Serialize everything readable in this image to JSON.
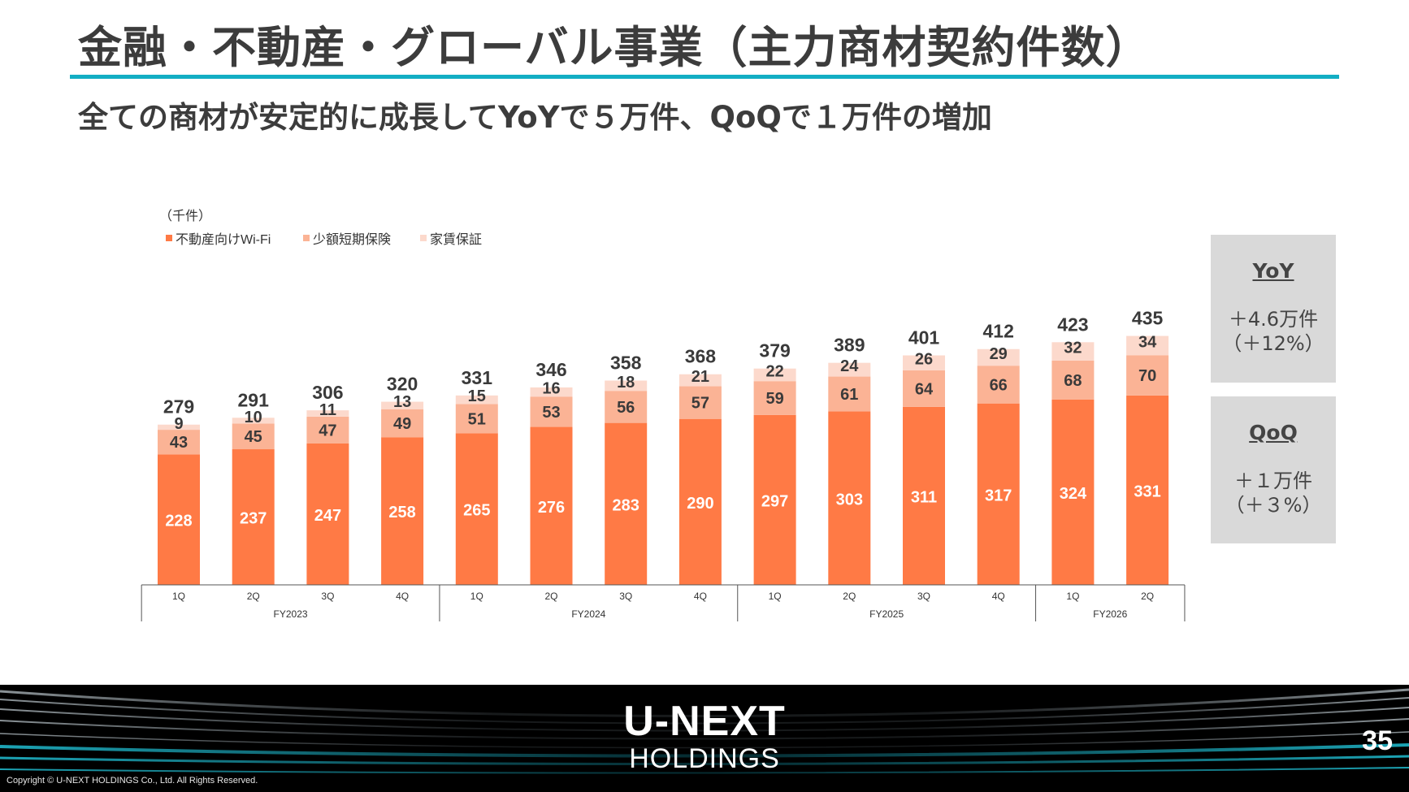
{
  "title": "金融・不動産・グローバル事業（主力商材契約件数）",
  "subtitle": "全ての商材が安定的に成長してYoYで５万件、QoQで１万件の増加",
  "colors": {
    "accent": "#12aec4",
    "wifi": "#ff7a45",
    "insurance": "#fbb395",
    "rent": "#fcd9cc"
  },
  "chart_data": {
    "type": "bar",
    "stacked": true,
    "unit_label": "（千件）",
    "categories": [
      "1Q",
      "2Q",
      "3Q",
      "4Q",
      "1Q",
      "2Q",
      "3Q",
      "4Q",
      "1Q",
      "2Q",
      "3Q",
      "4Q",
      "1Q",
      "2Q"
    ],
    "groups": [
      {
        "label": "FY2023",
        "count": 4
      },
      {
        "label": "FY2024",
        "count": 4
      },
      {
        "label": "FY2025",
        "count": 4
      },
      {
        "label": "FY2026",
        "count": 2
      }
    ],
    "series": [
      {
        "name": "不動産向けWi-Fi",
        "color": "#ff7a45",
        "values": [
          228,
          237,
          247,
          258,
          265,
          276,
          283,
          290,
          297,
          303,
          311,
          317,
          324,
          331
        ]
      },
      {
        "name": "少額短期保険",
        "color": "#fbb395",
        "values": [
          43,
          45,
          47,
          49,
          51,
          53,
          56,
          57,
          59,
          61,
          64,
          66,
          68,
          70
        ]
      },
      {
        "name": "家賃保証",
        "color": "#fcd9cc",
        "values": [
          9,
          10,
          11,
          13,
          15,
          16,
          18,
          21,
          22,
          24,
          26,
          29,
          32,
          34
        ]
      }
    ],
    "totals": [
      279,
      291,
      306,
      320,
      331,
      346,
      358,
      368,
      379,
      389,
      401,
      412,
      423,
      435
    ],
    "legend_position": "top-left",
    "grid": false
  },
  "yoy": {
    "title": "YoY",
    "line1": "＋4.6万件",
    "line2": "（＋12%）"
  },
  "qoq": {
    "title": "QoQ",
    "line1": "＋１万件",
    "line2": "（＋３%）"
  },
  "footer": {
    "logo_main": "U-NEXT",
    "logo_sub": "HOLDINGS",
    "page_number": "35",
    "copyright": "Copyright © U-NEXT HOLDINGS Co., Ltd. All Rights Reserved."
  }
}
